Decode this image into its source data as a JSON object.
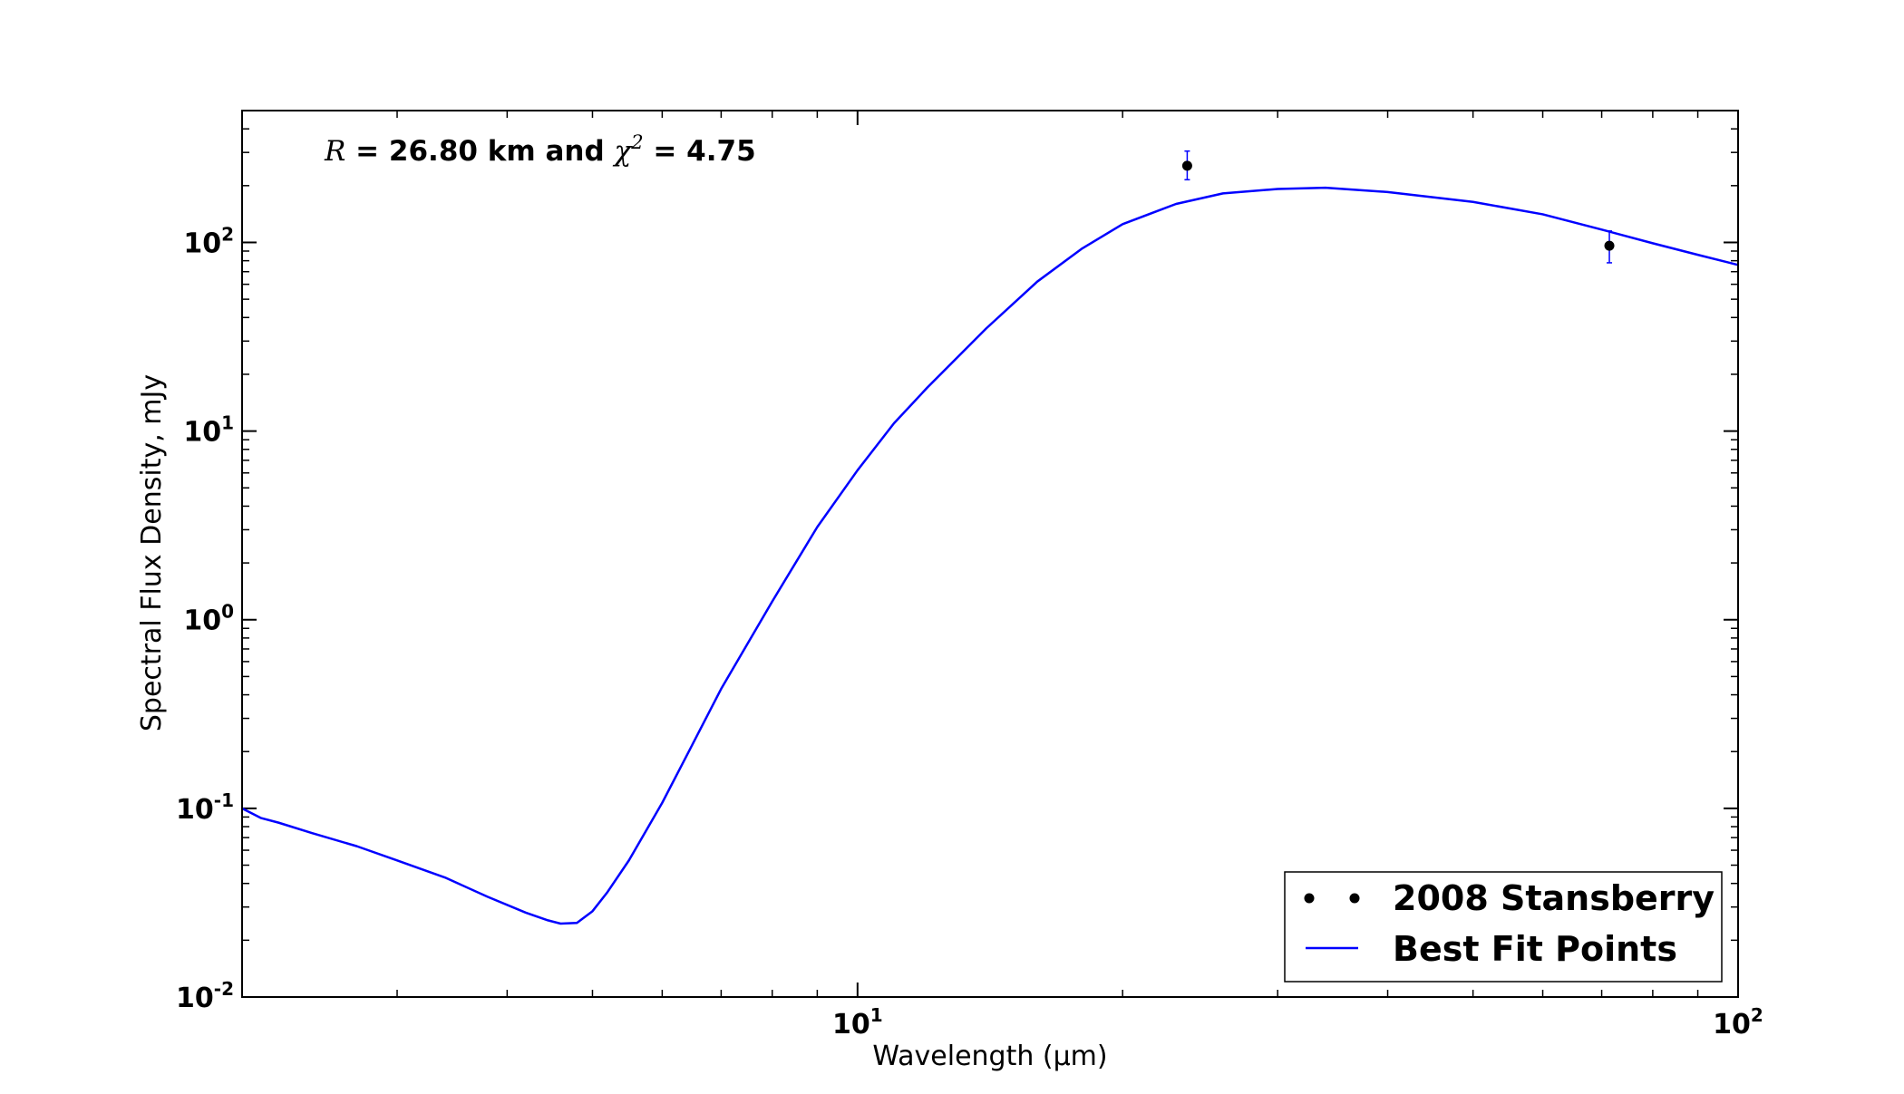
{
  "chart_data": {
    "type": "line",
    "title": "",
    "xlabel": "Wavelength (μm)",
    "ylabel": "Spectral Flux Density, mJy",
    "xscale": "log",
    "yscale": "log",
    "xlim": [
      2,
      100
    ],
    "ylim": [
      0.01,
      500
    ],
    "x_ticks": [
      {
        "value": 10,
        "base": "10",
        "exp": "1"
      },
      {
        "value": 100,
        "base": "10",
        "exp": "2"
      }
    ],
    "y_ticks": [
      {
        "value": 0.01,
        "base": "10",
        "exp": "-2"
      },
      {
        "value": 0.1,
        "base": "10",
        "exp": "-1"
      },
      {
        "value": 1,
        "base": "10",
        "exp": "0"
      },
      {
        "value": 10,
        "base": "10",
        "exp": "1"
      },
      {
        "value": 100,
        "base": "10",
        "exp": "2"
      }
    ],
    "annotation": {
      "var_r": "R",
      "part1": " = 26.80 km and ",
      "var_chi": "χ",
      "sup": "2",
      "part2": "  =  4.75"
    },
    "series": [
      {
        "name": "2008 Stansberry",
        "kind": "errorbar",
        "color": "#000000",
        "errcolor": "#0000ff",
        "points": [
          {
            "x": 23.68,
            "y": 255,
            "ylow": 215,
            "yhigh": 305
          },
          {
            "x": 71.42,
            "y": 96,
            "ylow": 78,
            "yhigh": 115
          }
        ]
      },
      {
        "name": "Best Fit Points",
        "kind": "line",
        "color": "#0000ff",
        "points": [
          [
            2.0,
            0.1
          ],
          [
            2.1,
            0.089
          ],
          [
            2.2,
            0.084
          ],
          [
            2.4,
            0.074
          ],
          [
            2.7,
            0.063
          ],
          [
            3.0,
            0.053
          ],
          [
            3.4,
            0.043
          ],
          [
            3.8,
            0.034
          ],
          [
            4.2,
            0.028
          ],
          [
            4.45,
            0.0255
          ],
          [
            4.6,
            0.0245
          ],
          [
            4.8,
            0.0247
          ],
          [
            5.0,
            0.0285
          ],
          [
            5.2,
            0.036
          ],
          [
            5.5,
            0.053
          ],
          [
            6.0,
            0.107
          ],
          [
            6.5,
            0.22
          ],
          [
            7.0,
            0.43
          ],
          [
            8.0,
            1.25
          ],
          [
            9.0,
            3.1
          ],
          [
            10.0,
            6.2
          ],
          [
            11.0,
            11.0
          ],
          [
            12.0,
            17.0
          ],
          [
            14.0,
            35.0
          ],
          [
            16.0,
            62.0
          ],
          [
            18.0,
            93.0
          ],
          [
            20.0,
            125.0
          ],
          [
            23.0,
            160.0
          ],
          [
            26.0,
            182.0
          ],
          [
            30.0,
            192.0
          ],
          [
            34.0,
            195.0
          ],
          [
            40.0,
            185.0
          ],
          [
            50.0,
            164.0
          ],
          [
            60.0,
            141.0
          ],
          [
            70.0,
            117.0
          ],
          [
            80.0,
            99.0
          ],
          [
            90.0,
            86.0
          ],
          [
            100.0,
            76.0
          ]
        ]
      }
    ],
    "legend": {
      "position": "lower-right"
    }
  }
}
